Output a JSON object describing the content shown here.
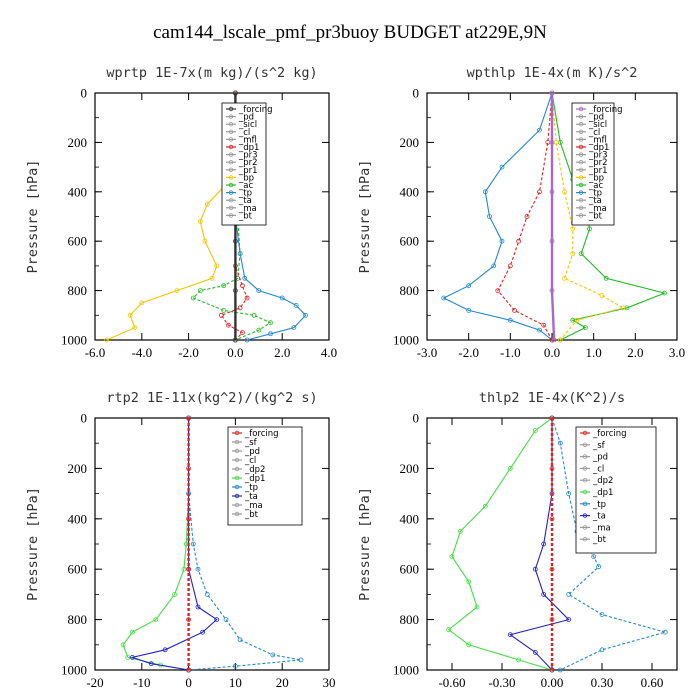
{
  "figure_title": "cam144_lscale_pmf_pr3buoy  BUDGET at229E,9N",
  "chart_data": [
    {
      "type": "line",
      "title": "wprtp  1E-7x(m kg)/(s^2 kg)",
      "ylabel": "Pressure [hPa]",
      "xlim": [
        -6,
        4
      ],
      "ylim": [
        1000,
        0
      ],
      "xticks": [
        "-6.0",
        "-4.0",
        "-2.0",
        "0.0",
        "2.0",
        "4.0"
      ],
      "yticks": [
        "0",
        "200",
        "400",
        "600",
        "800",
        "1000"
      ],
      "legend_position": "top-right",
      "legend": [
        "_forcing",
        "_pd",
        "_sicl",
        "_cl",
        "_mfl",
        "_dp1",
        "_pr3",
        "_pr2",
        "_pr1",
        "_bp",
        "_ac",
        "_tp",
        "_ta",
        "_ma",
        "_bt"
      ],
      "series": [
        {
          "name": "_bp",
          "color": "#f5c400",
          "points": [
            [
              0,
              0
            ],
            [
              0,
              150
            ],
            [
              -0.2,
              300
            ],
            [
              -0.5,
              380
            ],
            [
              -1.2,
              450
            ],
            [
              -1.5,
              520
            ],
            [
              -1.3,
              600
            ],
            [
              -0.8,
              700
            ],
            [
              -1,
              750
            ],
            [
              -2.5,
              800
            ],
            [
              -4,
              850
            ],
            [
              -4.5,
              900
            ],
            [
              -4.3,
              950
            ],
            [
              -5.5,
              1000
            ]
          ]
        },
        {
          "name": "_ac",
          "color": "#22bb22",
          "points": [
            [
              0,
              0
            ],
            [
              0,
              300
            ],
            [
              0.1,
              500
            ],
            [
              0.2,
              650
            ],
            [
              0.1,
              750
            ],
            [
              -0.5,
              780
            ],
            [
              -1.5,
              800
            ],
            [
              -1.8,
              830
            ],
            [
              -0.5,
              880
            ],
            [
              0.8,
              900
            ],
            [
              1.5,
              930
            ],
            [
              1,
              960
            ],
            [
              0,
              1000
            ]
          ]
        },
        {
          "name": "_tp",
          "color": "#2288cc",
          "points": [
            [
              0,
              0
            ],
            [
              0,
              500
            ],
            [
              0.2,
              650
            ],
            [
              0.4,
              750
            ],
            [
              1,
              800
            ],
            [
              2,
              830
            ],
            [
              2.6,
              860
            ],
            [
              3,
              900
            ],
            [
              2.5,
              950
            ],
            [
              1.5,
              975
            ],
            [
              0.5,
              1000
            ]
          ]
        },
        {
          "name": "_dp1",
          "color": "#dd2222",
          "points": [
            [
              0,
              0
            ],
            [
              0,
              700
            ],
            [
              0.3,
              780
            ],
            [
              0.5,
              830
            ],
            [
              0.2,
              870
            ],
            [
              -0.6,
              900
            ],
            [
              -0.3,
              940
            ],
            [
              0.3,
              970
            ],
            [
              0,
              1000
            ]
          ]
        },
        {
          "name": "_forcing",
          "color": "#333333",
          "points": [
            [
              0,
              0
            ],
            [
              0,
              200
            ],
            [
              0,
              400
            ],
            [
              0,
              600
            ],
            [
              0,
              800
            ],
            [
              0,
              1000
            ]
          ]
        }
      ]
    },
    {
      "type": "line",
      "title": "wpthlp  1E-4x(m K)/s^2",
      "ylabel": "Pressure [hPa]",
      "xlim": [
        -3,
        3
      ],
      "ylim": [
        1000,
        0
      ],
      "xticks": [
        "-3.0",
        "-2.0",
        "-1.0",
        "0.0",
        "1.0",
        "2.0",
        "3.0"
      ],
      "yticks": [
        "0",
        "200",
        "400",
        "600",
        "800",
        "1000"
      ],
      "legend_position": "top-right",
      "legend": [
        "_forcing",
        "_pd",
        "_sicl",
        "_cl",
        "_mfl",
        "_dp1",
        "_pr3",
        "_pr2",
        "_pr1",
        "_bp",
        "_ac",
        "_tp",
        "_ta",
        "_ma",
        "_bt"
      ],
      "series": [
        {
          "name": "_tp",
          "color": "#2288cc",
          "points": [
            [
              0,
              0
            ],
            [
              -0.3,
              150
            ],
            [
              -1.2,
              300
            ],
            [
              -1.6,
              400
            ],
            [
              -1.5,
              500
            ],
            [
              -1.2,
              600
            ],
            [
              -1.4,
              700
            ],
            [
              -2,
              780
            ],
            [
              -2.6,
              830
            ],
            [
              -2,
              880
            ],
            [
              -1,
              920
            ],
            [
              -0.3,
              960
            ],
            [
              0,
              1000
            ]
          ]
        },
        {
          "name": "_dp1",
          "color": "#dd2222",
          "points": [
            [
              0,
              0
            ],
            [
              -0.1,
              200
            ],
            [
              -0.3,
              400
            ],
            [
              -0.6,
              500
            ],
            [
              -0.8,
              600
            ],
            [
              -1,
              700
            ],
            [
              -1.3,
              800
            ],
            [
              -0.9,
              880
            ],
            [
              -0.2,
              940
            ],
            [
              0,
              1000
            ]
          ]
        },
        {
          "name": "_ac",
          "color": "#22bb22",
          "points": [
            [
              0,
              0
            ],
            [
              0.2,
              200
            ],
            [
              0.5,
              350
            ],
            [
              0.8,
              450
            ],
            [
              0.9,
              550
            ],
            [
              0.7,
              650
            ],
            [
              1.3,
              750
            ],
            [
              2.7,
              810
            ],
            [
              1.8,
              870
            ],
            [
              0.5,
              920
            ],
            [
              0.8,
              950
            ],
            [
              0.2,
              1000
            ]
          ]
        },
        {
          "name": "_bp",
          "color": "#f5c400",
          "points": [
            [
              0,
              0
            ],
            [
              0.1,
              200
            ],
            [
              0.3,
              400
            ],
            [
              0.5,
              550
            ],
            [
              0.5,
              650
            ],
            [
              0.3,
              750
            ],
            [
              1.2,
              820
            ],
            [
              1.7,
              870
            ],
            [
              0.6,
              920
            ],
            [
              0.2,
              1000
            ]
          ]
        },
        {
          "name": "_forcing",
          "color": "#aa66cc",
          "points": [
            [
              0,
              0
            ],
            [
              0,
              200
            ],
            [
              0,
              400
            ],
            [
              0,
              600
            ],
            [
              0,
              800
            ],
            [
              0.05,
              1000
            ]
          ]
        }
      ]
    },
    {
      "type": "line",
      "title": "rtp2  1E-11x(kg^2)/(kg^2 s)",
      "ylabel": "Pressure [hPa]",
      "xlim": [
        -20,
        30
      ],
      "ylim": [
        1000,
        0
      ],
      "xticks": [
        "-20",
        "-10",
        "0",
        "10",
        "20",
        "30"
      ],
      "yticks": [
        "0",
        "200",
        "400",
        "600",
        "800",
        "1000"
      ],
      "legend_position": "top-right",
      "legend": [
        "_forcing",
        "_sf",
        "_pd",
        "_cl",
        "_dp2",
        "_dp1",
        "_tp",
        "_ta",
        "_ma",
        "_bt"
      ],
      "series": [
        {
          "name": "_dp1",
          "color": "#44dd44",
          "points": [
            [
              0,
              0
            ],
            [
              0,
              300
            ],
            [
              -0.5,
              500
            ],
            [
              -1,
              600
            ],
            [
              -3,
              700
            ],
            [
              -7,
              800
            ],
            [
              -12,
              850
            ],
            [
              -14,
              900
            ],
            [
              -13,
              950
            ],
            [
              -6,
              980
            ],
            [
              0,
              1000
            ]
          ]
        },
        {
          "name": "_tp",
          "color": "#2288cc",
          "points": [
            [
              0,
              0
            ],
            [
              0,
              300
            ],
            [
              1,
              500
            ],
            [
              2,
              600
            ],
            [
              4,
              700
            ],
            [
              8,
              800
            ],
            [
              11,
              880
            ],
            [
              18,
              940
            ],
            [
              24,
              960
            ],
            [
              10,
              985
            ],
            [
              0,
              1000
            ]
          ]
        },
        {
          "name": "_ta",
          "color": "#2222cc",
          "points": [
            [
              0,
              0
            ],
            [
              0,
              600
            ],
            [
              2,
              750
            ],
            [
              6,
              800
            ],
            [
              3,
              850
            ],
            [
              -5,
              920
            ],
            [
              -12,
              950
            ],
            [
              -8,
              975
            ],
            [
              0,
              1000
            ]
          ]
        },
        {
          "name": "_forcing",
          "color": "#dd2222",
          "points": [
            [
              0,
              0
            ],
            [
              0,
              200
            ],
            [
              0,
              400
            ],
            [
              0,
              600
            ],
            [
              0,
              800
            ],
            [
              0,
              1000
            ]
          ]
        }
      ]
    },
    {
      "type": "line",
      "title": "thlp2  1E-4x(K^2)/s",
      "ylabel": "Pressure [hPa]",
      "xlim": [
        -0.75,
        0.75
      ],
      "ylim": [
        1000,
        0
      ],
      "xticks": [
        "-0.60",
        "-0.30",
        "0.00",
        "0.30",
        "0.60"
      ],
      "yticks": [
        "0",
        "200",
        "400",
        "600",
        "800",
        "1000"
      ],
      "legend_position": "top-right",
      "legend": [
        "_forcing",
        "_sf",
        "_pd",
        "_cl",
        "_dp2",
        "_dp1",
        "_tp",
        "_ta",
        "_ma",
        "_bt"
      ],
      "series": [
        {
          "name": "_dp1",
          "color": "#44dd44",
          "points": [
            [
              0,
              0
            ],
            [
              -0.1,
              50
            ],
            [
              -0.25,
              200
            ],
            [
              -0.4,
              350
            ],
            [
              -0.55,
              450
            ],
            [
              -0.6,
              550
            ],
            [
              -0.5,
              650
            ],
            [
              -0.45,
              750
            ],
            [
              -0.62,
              840
            ],
            [
              -0.5,
              900
            ],
            [
              -0.2,
              960
            ],
            [
              0,
              1000
            ]
          ]
        },
        {
          "name": "_tp",
          "color": "#2288cc",
          "points": [
            [
              0,
              0
            ],
            [
              0.05,
              100
            ],
            [
              0.1,
              300
            ],
            [
              0.15,
              450
            ],
            [
              0.25,
              550
            ],
            [
              0.28,
              590
            ],
            [
              0.1,
              700
            ],
            [
              0.3,
              780
            ],
            [
              0.68,
              850
            ],
            [
              0.3,
              920
            ],
            [
              0.05,
              1000
            ]
          ]
        },
        {
          "name": "_ta",
          "color": "#2222cc",
          "points": [
            [
              0,
              0
            ],
            [
              0,
              300
            ],
            [
              -0.05,
              500
            ],
            [
              -0.1,
              600
            ],
            [
              -0.05,
              700
            ],
            [
              0.1,
              800
            ],
            [
              -0.25,
              860
            ],
            [
              -0.1,
              930
            ],
            [
              0,
              1000
            ]
          ]
        },
        {
          "name": "_forcing",
          "color": "#dd2222",
          "points": [
            [
              0,
              0
            ],
            [
              0,
              200
            ],
            [
              0,
              400
            ],
            [
              0,
              600
            ],
            [
              0,
              800
            ],
            [
              0,
              1000
            ]
          ]
        }
      ]
    }
  ]
}
